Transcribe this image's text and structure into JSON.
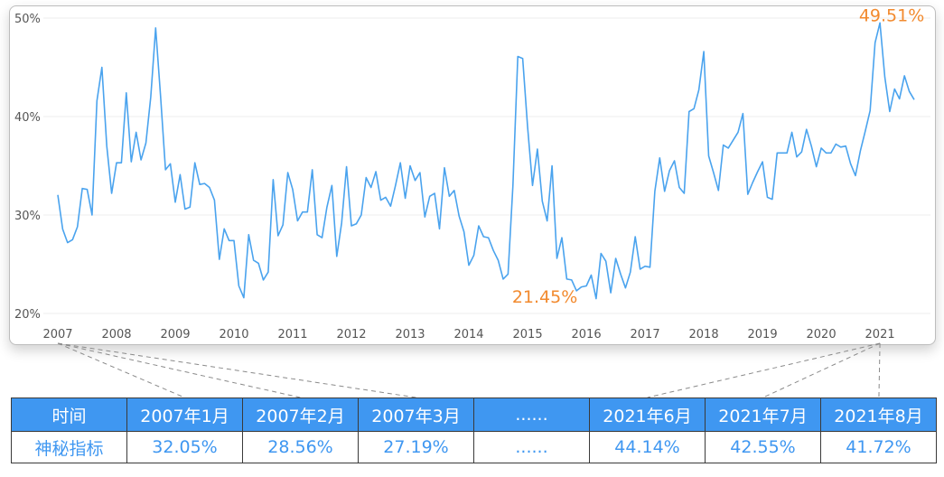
{
  "chart_data": {
    "type": "line",
    "title": "",
    "xlabel": "",
    "ylabel": "",
    "ylim": [
      20,
      50
    ],
    "y_ticks": [
      "20%",
      "30%",
      "40%",
      "50%"
    ],
    "x_ticks": [
      "2007",
      "2008",
      "2009",
      "2010",
      "2011",
      "2012",
      "2013",
      "2014",
      "2015",
      "2016",
      "2017",
      "2018",
      "2019",
      "2020",
      "2021"
    ],
    "grid": true,
    "line_color": "#4aa3ee",
    "annotation_color": "#f28a2e",
    "annotations": [
      {
        "label": "49.51%",
        "x": 2021.2,
        "y": 49.51
      },
      {
        "label": "21.45%",
        "x": 2015.6,
        "y": 21.45
      }
    ],
    "series": [
      {
        "x": [
          2007.0,
          2007.0833,
          2007.1667,
          2007.25,
          2007.3333,
          2007.4167,
          2007.5,
          2007.5833,
          2007.6667,
          2007.75,
          2007.8333,
          2007.9167,
          2008.0,
          2008.0833,
          2008.1667,
          2008.25,
          2008.3333,
          2008.4167,
          2008.5,
          2008.5833,
          2008.6667,
          2008.75,
          2008.8333,
          2008.9167,
          2009.0,
          2009.0833,
          2009.1667,
          2009.25,
          2009.3333,
          2009.4167,
          2009.5,
          2009.5833,
          2009.6667,
          2009.75,
          2009.8333,
          2009.9167,
          2010.0,
          2010.0833,
          2010.1667,
          2010.25,
          2010.3333,
          2010.4167,
          2010.5,
          2010.5833,
          2010.6667,
          2010.75,
          2010.8333,
          2010.9167,
          2011.0,
          2011.0833,
          2011.1667,
          2011.25,
          2011.3333,
          2011.4167,
          2011.5,
          2011.5833,
          2011.6667,
          2011.75,
          2011.8333,
          2011.9167,
          2012.0,
          2012.0833,
          2012.1667,
          2012.25,
          2012.3333,
          2012.4167,
          2012.5,
          2012.5833,
          2012.6667,
          2012.75,
          2012.8333,
          2012.9167,
          2013.0,
          2013.0833,
          2013.1667,
          2013.25,
          2013.3333,
          2013.4167,
          2013.5,
          2013.5833,
          2013.6667,
          2013.75,
          2013.8333,
          2013.9167,
          2014.0,
          2014.0833,
          2014.1667,
          2014.25,
          2014.3333,
          2014.4167,
          2014.5,
          2014.5833,
          2014.6667,
          2014.75,
          2014.8333,
          2014.9167,
          2015.0,
          2015.0833,
          2015.1667,
          2015.25,
          2015.3333,
          2015.4167,
          2015.5,
          2015.5833,
          2015.6667,
          2015.75,
          2015.8333,
          2015.9167,
          2016.0,
          2016.0833,
          2016.1667,
          2016.25,
          2016.3333,
          2016.4167,
          2016.5,
          2016.5833,
          2016.6667,
          2016.75,
          2016.8333,
          2016.9167,
          2017.0,
          2017.0833,
          2017.1667,
          2017.25,
          2017.3333,
          2017.4167,
          2017.5,
          2017.5833,
          2017.6667,
          2017.75,
          2017.8333,
          2017.9167,
          2018.0,
          2018.0833,
          2018.1667,
          2018.25,
          2018.3333,
          2018.4167,
          2018.5,
          2018.5833,
          2018.6667,
          2018.75,
          2018.8333,
          2018.9167,
          2019.0,
          2019.0833,
          2019.1667,
          2019.25,
          2019.3333,
          2019.4167,
          2019.5,
          2019.5833,
          2019.6667,
          2019.75,
          2019.8333,
          2019.9167,
          2020.0,
          2020.0833,
          2020.1667,
          2020.25,
          2020.3333,
          2020.4167,
          2020.5,
          2020.5833,
          2020.6667,
          2020.75,
          2020.8333,
          2020.9167,
          2021.0,
          2021.0833,
          2021.1667,
          2021.25,
          2021.3333,
          2021.4167,
          2021.5,
          2021.5833
        ],
        "values": [
          32.05,
          28.56,
          27.19,
          27.5,
          28.8,
          32.7,
          32.6,
          30.0,
          41.6,
          45.0,
          37.0,
          32.2,
          35.3,
          35.3,
          42.4,
          35.4,
          38.4,
          35.6,
          37.3,
          42.0,
          49.0,
          42.0,
          34.6,
          35.2,
          31.3,
          34.1,
          30.6,
          30.8,
          35.3,
          33.1,
          33.2,
          32.8,
          31.5,
          25.5,
          28.6,
          27.4,
          27.4,
          22.8,
          21.6,
          28.0,
          25.4,
          25.1,
          23.4,
          24.2,
          33.6,
          27.9,
          29.0,
          34.3,
          32.6,
          29.4,
          30.3,
          30.3,
          34.6,
          28.0,
          27.7,
          30.8,
          33.0,
          25.8,
          29.2,
          34.9,
          28.9,
          29.1,
          30.0,
          33.8,
          32.8,
          34.4,
          31.5,
          31.8,
          30.9,
          33.0,
          35.3,
          31.7,
          35.0,
          33.5,
          34.3,
          29.8,
          31.9,
          32.2,
          28.6,
          34.8,
          31.9,
          32.5,
          29.9,
          28.3,
          24.9,
          25.9,
          28.9,
          27.8,
          27.7,
          26.4,
          25.4,
          23.5,
          24.0,
          33.0,
          46.1,
          45.9,
          39.0,
          33.0,
          36.7,
          31.4,
          29.4,
          35.0,
          25.6,
          27.7,
          23.5,
          23.4,
          22.3,
          22.7,
          22.8,
          23.9,
          21.5,
          26.1,
          25.3,
          22.1,
          25.6,
          24.0,
          22.6,
          24.2,
          27.8,
          24.5,
          24.8,
          24.7,
          32.4,
          35.8,
          32.4,
          34.5,
          35.5,
          32.8,
          32.2,
          40.5,
          40.8,
          42.7,
          46.6,
          36.0,
          34.3,
          32.5,
          37.1,
          36.8,
          37.6,
          38.4,
          40.3,
          32.1,
          33.3,
          34.4,
          35.4,
          31.8,
          31.6,
          36.3,
          36.3,
          36.3,
          38.4,
          35.9,
          36.4,
          38.7,
          37.0,
          34.9,
          36.8,
          36.3,
          36.3,
          37.2,
          36.9,
          37.0,
          35.2,
          34.0,
          36.5,
          38.5,
          40.6,
          47.5,
          49.51,
          44.0,
          40.5,
          42.8,
          41.8,
          44.14,
          42.55,
          41.72
        ]
      }
    ]
  },
  "table": {
    "header_label": "时间",
    "row_label": "神秘指标",
    "dates": [
      "2007年1月",
      "2007年2月",
      "2007年3月",
      "......",
      "2021年6月",
      "2021年7月",
      "2021年8月"
    ],
    "values": [
      "32.05%",
      "28.56%",
      "27.19%",
      "......",
      "44.14%",
      "42.55%",
      "41.72%"
    ]
  }
}
